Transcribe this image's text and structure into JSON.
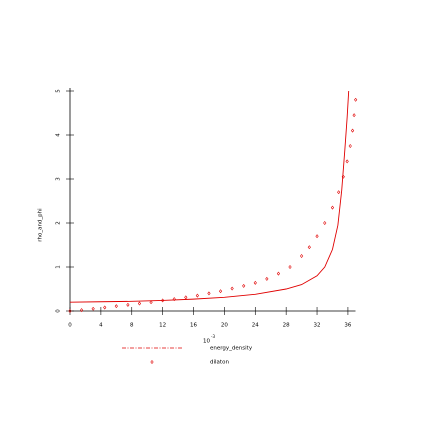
{
  "chart_data": {
    "type": "line",
    "ylabel": "rho_and_phi",
    "x_multiplier": {
      "base": "10",
      "exponent": "-3"
    },
    "xlim": [
      0,
      37.5
    ],
    "xticks": [
      0,
      4,
      8,
      12,
      16,
      20,
      24,
      28,
      32,
      36
    ],
    "ylim": [
      0,
      5
    ],
    "yticks": [
      0,
      1,
      2,
      3,
      4,
      5
    ],
    "series": [
      {
        "name": "energy_density",
        "color": "#e00000",
        "style": "line",
        "x": [
          0,
          4,
          8,
          12,
          16,
          20,
          24,
          28,
          30,
          32,
          33,
          34,
          34.7,
          35.2,
          35.6,
          35.9,
          36.1
        ],
        "values": [
          0.2,
          0.21,
          0.22,
          0.24,
          0.27,
          0.31,
          0.38,
          0.5,
          0.6,
          0.8,
          1.0,
          1.4,
          1.95,
          2.75,
          3.66,
          4.4,
          5.0
        ]
      },
      {
        "name": "dilaton",
        "color": "#e00000",
        "style": "marker",
        "x": [
          0,
          1.5,
          3,
          4.5,
          6,
          7.5,
          9,
          10.5,
          12,
          13.5,
          15,
          16.5,
          18,
          19.5,
          21,
          22.5,
          24,
          25.5,
          27,
          28.5,
          30,
          31,
          32,
          33,
          34,
          34.8,
          35.4,
          35.9,
          36.3,
          36.6,
          36.8,
          37
        ],
        "values": [
          0,
          0.02,
          0.05,
          0.08,
          0.11,
          0.14,
          0.17,
          0.2,
          0.24,
          0.27,
          0.31,
          0.35,
          0.4,
          0.45,
          0.51,
          0.57,
          0.64,
          0.73,
          0.85,
          1.0,
          1.25,
          1.45,
          1.7,
          2.0,
          2.35,
          2.7,
          3.05,
          3.4,
          3.75,
          4.1,
          4.45,
          4.8
        ]
      }
    ]
  }
}
